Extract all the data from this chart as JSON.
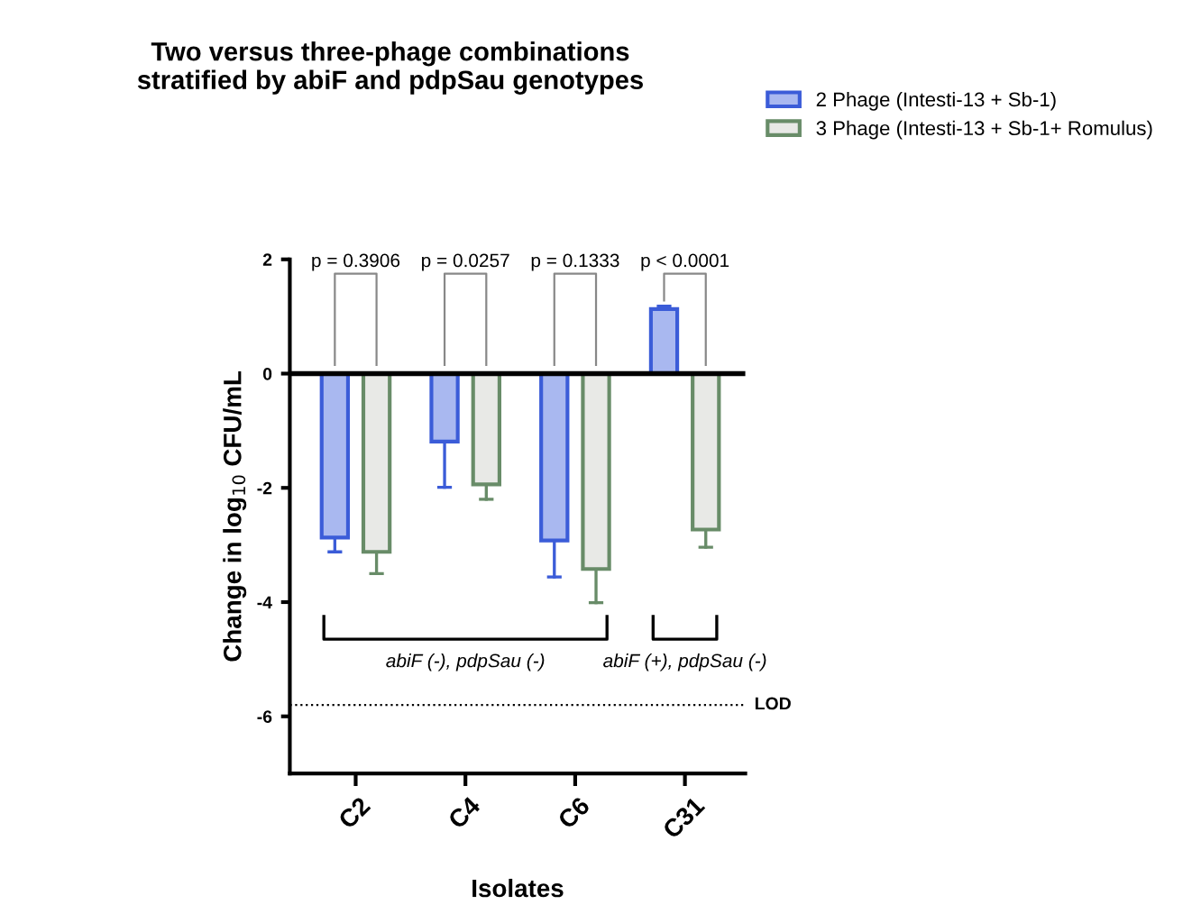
{
  "chart_data": {
    "type": "bar",
    "title": "Two versus three-phage combinations\nstratified by abiF and pdpSau genotypes",
    "xlabel": "Isolates",
    "ylabel": "Change in log$_{10}$ CFU/mL",
    "categories": [
      "C2",
      "C4",
      "C6",
      "C31"
    ],
    "series": [
      {
        "name": "2 Phage (Intesti-13 + Sb-1)",
        "color": "#a9b8f0",
        "values": [
          -2.87,
          -1.19,
          -2.92,
          1.13
        ],
        "errors": [
          [
            -3.12,
            -2.87
          ],
          [
            -1.99,
            -1.19
          ],
          [
            -3.56,
            -2.92
          ],
          [
            1.13,
            1.18
          ]
        ]
      },
      {
        "name": "3 Phage (Intesti-13 + Sb-1+ Romulus)",
        "color": "#e8e9e6",
        "values": [
          -3.12,
          -1.94,
          -3.42,
          -2.73
        ],
        "errors": [
          [
            -3.5,
            -3.12
          ],
          [
            -2.2,
            -1.94
          ],
          [
            -4.01,
            -3.42
          ],
          [
            -3.04,
            -2.73
          ]
        ]
      }
    ],
    "ylim": [
      -7,
      2
    ],
    "yticks": [
      2,
      0,
      -2,
      -4,
      -6
    ],
    "ref_lines": [
      {
        "axis": "y",
        "value": -5.8,
        "label": "LOD",
        "color": "#000000",
        "line_style": "dotted"
      }
    ],
    "annotations": [
      "p = 0.3906",
      "p = 0.0257",
      "p = 0.1333",
      "p < 0.0001",
      "abiF (-), pdpSau (-)",
      "abiF (+), pdpSau (-)"
    ],
    "legend": "top right"
  }
}
